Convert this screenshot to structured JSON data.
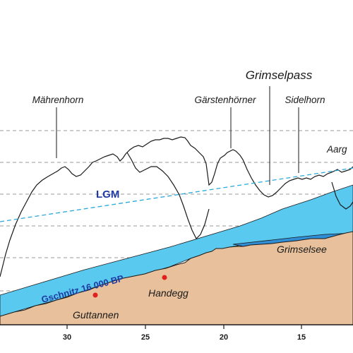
{
  "diagram": {
    "peaks": [
      {
        "id": "maehrenhorn",
        "label": "Mährenhorn"
      },
      {
        "id": "gaerstenhoerner",
        "label": "Gärstenhörner"
      },
      {
        "id": "sidelhorn",
        "label": "Sidelhorn"
      },
      {
        "id": "aargletscher-partial",
        "label": "Aarg"
      }
    ],
    "pass_label": "Grimselpass",
    "lake_label": "Grimselsee",
    "places": [
      {
        "id": "handegg",
        "label": "Handegg"
      },
      {
        "id": "guttannen",
        "label": "Guttannen"
      }
    ],
    "glacier_labels": {
      "gschnitz": "Gschnitz 16 000 BP",
      "lgm": "LGM"
    },
    "x_axis": {
      "ticks": [
        "30",
        "25",
        "20",
        "15"
      ]
    },
    "colors": {
      "rock": "#e8c09b",
      "ice": "#59c9ef",
      "lake": "#2f8ed6",
      "lgm_line": "#2aa8dc",
      "label_blue": "#1f3aa3",
      "marker": "#e0201c",
      "grid": "#9a9a9a"
    }
  }
}
